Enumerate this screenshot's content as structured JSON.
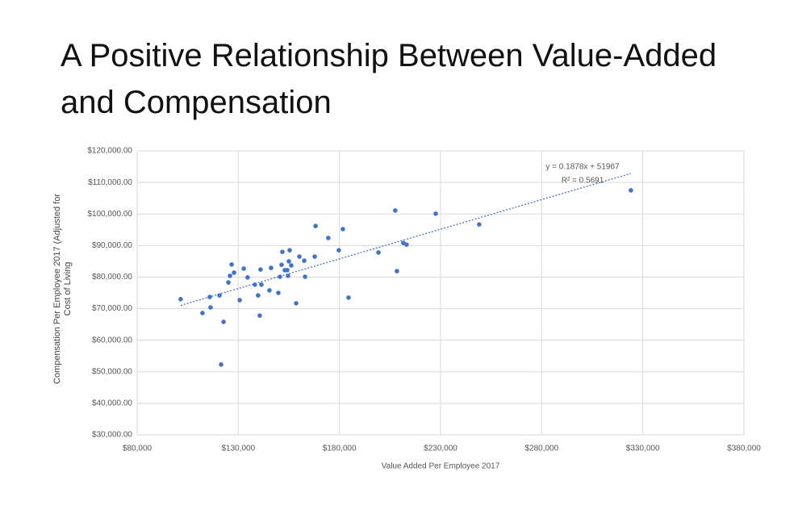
{
  "chart_data": {
    "type": "scatter",
    "title": "A Positive Relationship Between Value-Added and Compensation",
    "x_label": "Value Added Per Employee 2017",
    "y_label": "Compensation Per Employee 2017 (Adjusted for Cost of Living",
    "color": "#4472c4",
    "grid": true,
    "xlim": [
      80000,
      380000
    ],
    "ylim": [
      30000,
      120000
    ],
    "xticks": [
      {
        "value": 80000,
        "label": "$80,000"
      },
      {
        "value": 130000,
        "label": "$130,000"
      },
      {
        "value": 180000,
        "label": "$180,000"
      },
      {
        "value": 230000,
        "label": "$230,000"
      },
      {
        "value": 280000,
        "label": "$280,000"
      },
      {
        "value": 330000,
        "label": "$330,000"
      },
      {
        "value": 380000,
        "label": "$380,000"
      }
    ],
    "yticks": [
      {
        "value": 30000,
        "label": "$30,000.00"
      },
      {
        "value": 40000,
        "label": "$40,000.00"
      },
      {
        "value": 50000,
        "label": "$50,000.00"
      },
      {
        "value": 60000,
        "label": "$60,000.00"
      },
      {
        "value": 70000,
        "label": "$70,000.00"
      },
      {
        "value": 80000,
        "label": "$80,000.00"
      },
      {
        "value": 90000,
        "label": "$90,000.00"
      },
      {
        "value": 100000,
        "label": "$100,000.00"
      },
      {
        "value": 110000,
        "label": "$110,000.00"
      },
      {
        "value": 120000,
        "label": "$120,000.00"
      }
    ],
    "x": [
      101500,
      112300,
      115900,
      116300,
      120700,
      121500,
      122700,
      125100,
      125900,
      126700,
      127900,
      130700,
      132700,
      134600,
      138200,
      139800,
      140600,
      141000,
      141400,
      145400,
      146200,
      149800,
      150600,
      151400,
      151800,
      153000,
      154200,
      154600,
      155000,
      155400,
      156200,
      158600,
      160200,
      162600,
      163000,
      167800,
      168200,
      174500,
      179700,
      181700,
      184500,
      199300,
      207600,
      208400,
      211600,
      213200,
      227600,
      249100,
      324100
    ],
    "values": [
      73000,
      68600,
      73700,
      70400,
      74200,
      52300,
      65800,
      78300,
      80400,
      84000,
      81400,
      72700,
      82700,
      79900,
      77600,
      74200,
      67800,
      82400,
      77600,
      75800,
      82900,
      75000,
      80100,
      83900,
      88000,
      82200,
      82200,
      80400,
      85000,
      88500,
      83700,
      71700,
      86500,
      85200,
      80100,
      86500,
      96200,
      92400,
      88500,
      95200,
      73500,
      87800,
      101100,
      81900,
      90800,
      90300,
      100100,
      96700,
      107500
    ],
    "trendline": {
      "slope": 0.1878,
      "intercept": 51967,
      "equation": "y = 0.1878x + 51967",
      "r2": "R² = 0.5691"
    }
  }
}
